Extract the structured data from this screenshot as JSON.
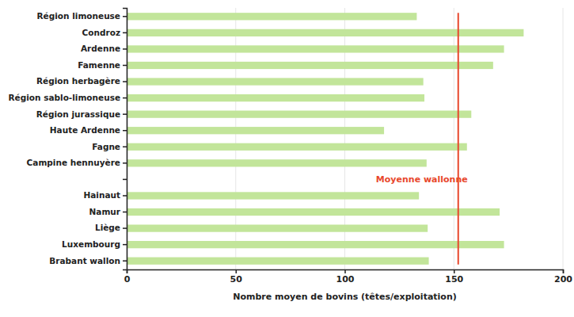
{
  "chart_data": {
    "type": "bar",
    "orientation": "horizontal",
    "x_label": "Nombre moyen de bovins (têtes/exploitation)",
    "categories": [
      "Région limoneuse",
      "Condroz",
      "Ardenne",
      "Famenne",
      "Région herbagère",
      "Région sablo-limoneuse",
      "Région jurassique",
      "Haute Ardenne",
      "Fagne",
      "Campine hennuyère",
      null,
      "Hainaut",
      "Namur",
      "Liège",
      "Luxembourg",
      "Brabant wallon"
    ],
    "values": [
      133,
      182,
      173,
      168,
      136,
      136.5,
      158,
      118,
      156,
      137.5,
      null,
      134,
      171,
      138,
      173,
      138.5
    ],
    "color": "#c2e59a",
    "xlim": [
      0,
      200
    ],
    "xticks": [
      0,
      50,
      100,
      150,
      200
    ],
    "grid": true,
    "average": {
      "label": "Moyenne wallonne",
      "value": 152,
      "color": "#e8472c"
    }
  }
}
